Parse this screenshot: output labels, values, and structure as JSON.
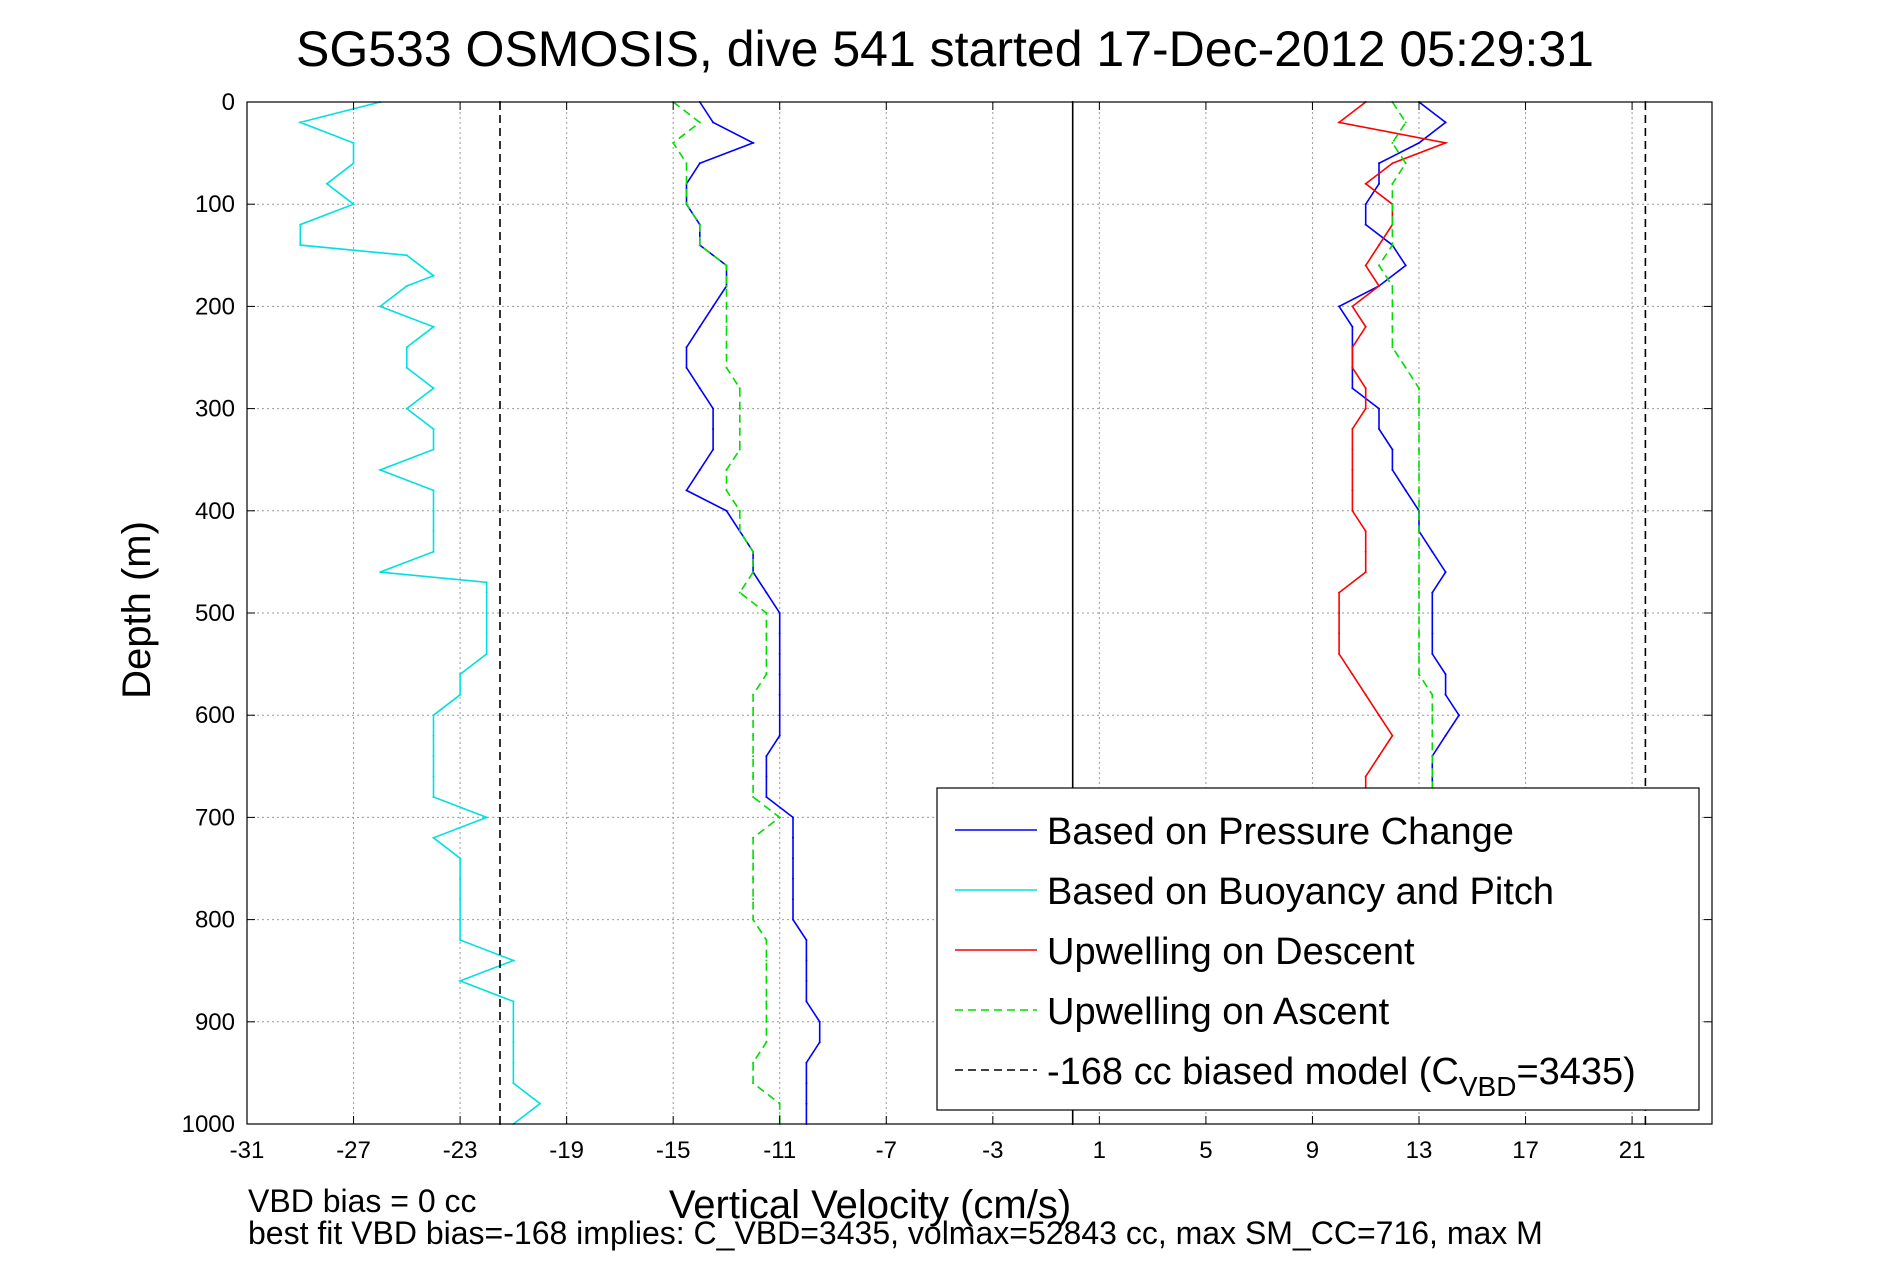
{
  "chart_data": {
    "type": "line",
    "title": "SG533 OSMOSIS, dive 541 started 17-Dec-2012 05:29:31",
    "xlabel": "Vertical Velocity (cm/s)",
    "ylabel": "Depth (m)",
    "xlim": [
      -31,
      24
    ],
    "ylim": [
      0,
      1000
    ],
    "y_reversed": true,
    "grid": true,
    "x_ticks": [
      -31,
      -27,
      -23,
      -19,
      -15,
      -11,
      -7,
      -3,
      1,
      5,
      9,
      13,
      17,
      21
    ],
    "y_ticks": [
      0,
      100,
      200,
      300,
      400,
      500,
      600,
      700,
      800,
      900,
      1000
    ],
    "legend_position": "bottom-right",
    "annotations": [
      "VBD bias = 0 cc",
      "best fit VBD bias=-168 implies: C_VBD=3435, volmax=52843 cc, max SM_CC=716, max M"
    ],
    "series": [
      {
        "name": "Based on Pressure Change",
        "color": "#0000ff",
        "style": "solid",
        "depth": [
          0,
          20,
          40,
          60,
          80,
          100,
          120,
          140,
          160,
          180,
          200,
          220,
          240,
          260,
          280,
          300,
          320,
          340,
          360,
          380,
          400,
          420,
          440,
          460,
          480,
          500,
          520,
          540,
          560,
          580,
          600,
          620,
          640,
          660,
          680,
          700,
          720,
          740,
          760,
          780,
          800,
          820,
          840,
          860,
          880,
          900,
          920,
          940,
          960,
          980,
          1000
        ],
        "velocity": [
          -14,
          -13.5,
          -12,
          -14,
          -14.5,
          -14.5,
          -14,
          -14,
          -13,
          -13,
          -13.5,
          -14,
          -14.5,
          -14.5,
          -14,
          -13.5,
          -13.5,
          -13.5,
          -14,
          -14.5,
          -13,
          -12.5,
          -12,
          -12,
          -11.5,
          -11,
          -11,
          -11,
          -11,
          -11,
          -11,
          -11,
          -11.5,
          -11.5,
          -11.5,
          -10.5,
          -10.5,
          -10.5,
          -10.5,
          -10.5,
          -10.5,
          -10,
          -10,
          -10,
          -10,
          -9.5,
          -9.5,
          -10,
          -10,
          -10,
          -10
        ]
      },
      {
        "name": "",
        "color": "#0000ff",
        "style": "solid",
        "depth": [
          0,
          20,
          40,
          60,
          80,
          100,
          120,
          140,
          160,
          180,
          200,
          220,
          240,
          260,
          280,
          300,
          320,
          340,
          360,
          380,
          400,
          420,
          440,
          460,
          480,
          500,
          520,
          540,
          560,
          580,
          600,
          620,
          640,
          660,
          680
        ],
        "velocity": [
          13,
          14,
          13,
          11.5,
          11.5,
          11,
          11,
          12,
          12.5,
          11.5,
          10,
          10.5,
          10.5,
          10.5,
          10.5,
          11.5,
          11.5,
          12,
          12,
          12.5,
          13,
          13,
          13.5,
          14,
          13.5,
          13.5,
          13.5,
          13.5,
          14,
          14,
          14.5,
          14,
          13.5,
          13.5,
          13.5
        ]
      },
      {
        "name": "Based on Buoyancy and Pitch",
        "color": "#00e0e0",
        "style": "solid",
        "depth": [
          0,
          20,
          40,
          60,
          80,
          100,
          120,
          140,
          150,
          170,
          180,
          200,
          220,
          240,
          260,
          280,
          300,
          320,
          340,
          360,
          380,
          400,
          420,
          440,
          460,
          470,
          480,
          500,
          520,
          540,
          560,
          580,
          600,
          620,
          640,
          660,
          680,
          700,
          720,
          740,
          760,
          780,
          800,
          820,
          840,
          860,
          880,
          900,
          920,
          940,
          960,
          980,
          1000
        ],
        "velocity": [
          -26,
          -29,
          -27,
          -27,
          -28,
          -27,
          -29,
          -29,
          -25,
          -24,
          -25,
          -26,
          -24,
          -25,
          -25,
          -24,
          -25,
          -24,
          -24,
          -26,
          -24,
          -24,
          -24,
          -24,
          -26,
          -22,
          -22,
          -22,
          -22,
          -22,
          -23,
          -23,
          -24,
          -24,
          -24,
          -24,
          -24,
          -22,
          -24,
          -23,
          -23,
          -23,
          -23,
          -23,
          -21,
          -23,
          -21,
          -21,
          -21,
          -21,
          -21,
          -20,
          -21
        ]
      },
      {
        "name": "Upwelling on Descent",
        "color": "#ff0000",
        "style": "solid",
        "depth": [
          0,
          20,
          40,
          60,
          80,
          100,
          120,
          140,
          160,
          180,
          200,
          220,
          240,
          260,
          280,
          300,
          320,
          340,
          360,
          380,
          400,
          420,
          440,
          460,
          480,
          500,
          520,
          540,
          560,
          580,
          600,
          620,
          640,
          660,
          680
        ],
        "velocity": [
          11,
          10,
          14,
          12,
          11,
          12,
          12,
          11.5,
          11,
          11.5,
          10.5,
          11,
          10.5,
          10.5,
          11,
          11,
          10.5,
          10.5,
          10.5,
          10.5,
          10.5,
          11,
          11,
          11,
          10,
          10,
          10,
          10,
          10.5,
          11,
          11.5,
          12,
          11.5,
          11,
          11
        ]
      },
      {
        "name": "Upwelling on Ascent",
        "color": "#00dd00",
        "style": "dashed",
        "depth": [
          0,
          20,
          40,
          60,
          80,
          100,
          120,
          140,
          160,
          180,
          200,
          220,
          240,
          260,
          280,
          300,
          320,
          340,
          360,
          380,
          400,
          420,
          440,
          460,
          480,
          500,
          520,
          540,
          560,
          580,
          600,
          620,
          640,
          660,
          680,
          700,
          720,
          740,
          760,
          780,
          800,
          820,
          840,
          860,
          880,
          900,
          920,
          940,
          960,
          980,
          1000
        ],
        "velocity": [
          -15,
          -14,
          -15,
          -14.5,
          -14.5,
          -14.5,
          -14,
          -14,
          -13,
          -13,
          -13,
          -13,
          -13,
          -13,
          -12.5,
          -12.5,
          -12.5,
          -12.5,
          -13,
          -13,
          -12.5,
          -12.5,
          -12,
          -12,
          -12.5,
          -11.5,
          -11.5,
          -11.5,
          -11.5,
          -12,
          -12,
          -12,
          -12,
          -12,
          -12,
          -11,
          -12,
          -12,
          -12,
          -12,
          -12,
          -11.5,
          -11.5,
          -11.5,
          -11.5,
          -11.5,
          -11.5,
          -12,
          -12,
          -11,
          -11
        ]
      },
      {
        "name": "",
        "color": "#00dd00",
        "style": "dashed",
        "depth": [
          0,
          20,
          40,
          60,
          80,
          100,
          120,
          140,
          160,
          180,
          200,
          220,
          240,
          260,
          280,
          300,
          320,
          340,
          360,
          380,
          400,
          420,
          440,
          460,
          480,
          500,
          520,
          540,
          560,
          580,
          600,
          620,
          640,
          660,
          680
        ],
        "velocity": [
          12,
          12.5,
          12,
          12.5,
          12,
          12,
          12,
          12,
          11.5,
          12,
          12,
          12,
          12,
          12.5,
          13,
          13,
          13,
          13,
          13,
          13,
          13,
          13,
          13,
          13,
          13,
          13,
          13,
          13,
          13,
          13.5,
          13.5,
          13.5,
          13.5,
          13.5,
          13.5
        ]
      },
      {
        "name": "-168 cc biased model (C_VBD=3435)",
        "color": "#000000",
        "style": "dashed",
        "depth": [
          0,
          1000
        ],
        "velocity": [
          -21.5,
          -21.5
        ]
      },
      {
        "name": "",
        "color": "#000000",
        "style": "dashed",
        "depth": [
          0,
          1000
        ],
        "velocity": [
          21.5,
          21.5
        ]
      },
      {
        "name": "",
        "color": "#000000",
        "style": "solid",
        "depth": [
          0,
          1000
        ],
        "velocity": [
          0,
          0
        ]
      }
    ],
    "legend": [
      {
        "label": "Based on Pressure Change",
        "color": "#0000ff",
        "style": "solid"
      },
      {
        "label": "Based on Buoyancy and Pitch",
        "color": "#00e0e0",
        "style": "solid"
      },
      {
        "label": "Upwelling on Descent",
        "color": "#ff0000",
        "style": "solid"
      },
      {
        "label": "Upwelling on Ascent",
        "color": "#00dd00",
        "style": "dashed"
      },
      {
        "label_prefix": "-168 cc biased model (C",
        "label_sub": "VBD",
        "label_suffix": "=3435)",
        "color": "#000000",
        "style": "dashed"
      }
    ]
  }
}
